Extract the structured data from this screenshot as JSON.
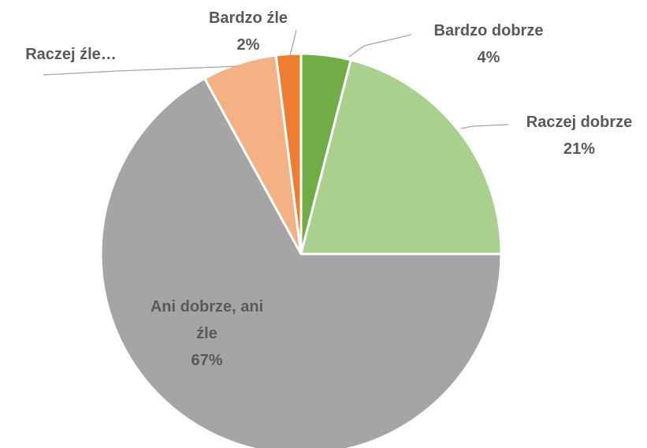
{
  "chart_data": {
    "type": "pie",
    "categories": [
      "Bardzo dobrze",
      "Raczej dobrze",
      "Ani dobrze, ani źle",
      "Raczej źle…",
      "Bardzo źle"
    ],
    "values": [
      4,
      21,
      67,
      6,
      2
    ],
    "value_labels": [
      "4%",
      "21%",
      "67%",
      null,
      "2%"
    ],
    "colors": [
      "#70ad47",
      "#a9d18e",
      "#a5a5a5",
      "#f4b183",
      "#ed7d31"
    ]
  }
}
